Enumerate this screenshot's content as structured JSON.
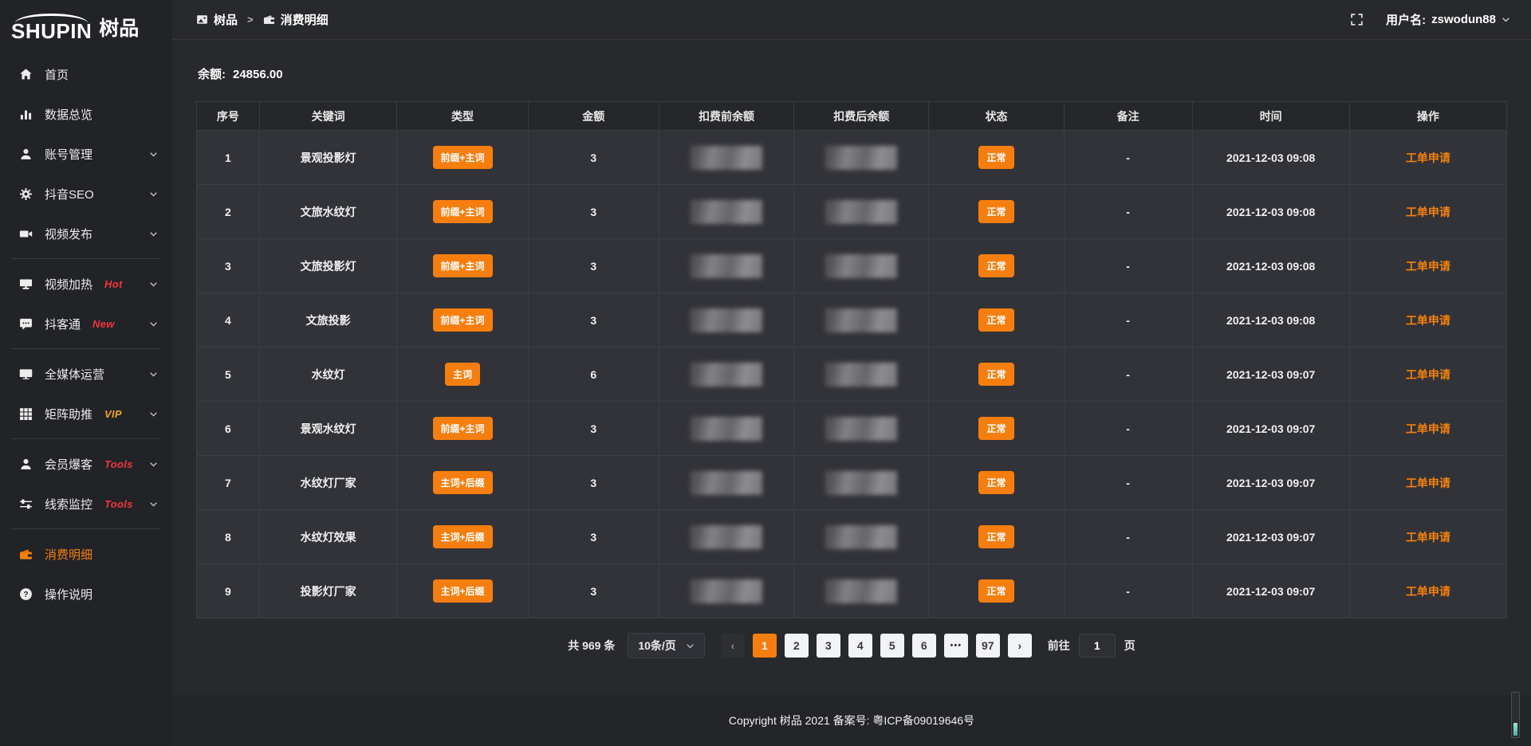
{
  "brand": {
    "logo_en": "SHUPIN",
    "logo_cn": "树品"
  },
  "topbar": {
    "breadcrumb": [
      {
        "label": "树品",
        "icon": "photo"
      },
      {
        "label": "消费明细",
        "icon": "wallet"
      }
    ],
    "breadcrumb_separator": ">",
    "username_label": "用户名:",
    "username": "zswodun88"
  },
  "sidebar": {
    "items": [
      {
        "label": "首页",
        "icon": "home"
      },
      {
        "label": "数据总览",
        "icon": "chart"
      },
      {
        "label": "账号管理",
        "icon": "user",
        "chevron": true
      },
      {
        "label": "抖音SEO",
        "icon": "gear",
        "chevron": true
      },
      {
        "label": "视频发布",
        "icon": "video",
        "chevron": true
      },
      {
        "label": "视频加热",
        "icon": "screen",
        "chevron": true,
        "badge": "Hot",
        "badge_style": "red",
        "divider_before": true
      },
      {
        "label": "抖客通",
        "icon": "chat",
        "chevron": true,
        "badge": "New",
        "badge_style": "red"
      },
      {
        "label": "全媒体运营",
        "icon": "monitor",
        "chevron": true,
        "divider_before": true
      },
      {
        "label": "矩阵助推",
        "icon": "grid",
        "chevron": true,
        "badge": "VIP",
        "badge_style": "gold"
      },
      {
        "label": "会员爆客",
        "icon": "member",
        "chevron": true,
        "badge": "Tools",
        "badge_style": "red",
        "divider_before": true
      },
      {
        "label": "线索监控",
        "icon": "sliders",
        "chevron": true,
        "badge": "Tools",
        "badge_style": "red"
      },
      {
        "label": "消费明细",
        "icon": "wallet",
        "active": true,
        "divider_before": true
      },
      {
        "label": "操作说明",
        "icon": "question"
      }
    ]
  },
  "main": {
    "balance_label": "余额:",
    "balance_value": "24856.00",
    "table": {
      "columns": [
        {
          "label": "序号",
          "key": "index",
          "kind": "text",
          "width": "4.8%"
        },
        {
          "label": "关键词",
          "key": "keyword",
          "kind": "text",
          "width": "10.5%"
        },
        {
          "label": "类型",
          "key": "type",
          "kind": "badge",
          "width": "10%"
        },
        {
          "label": "金额",
          "key": "amount",
          "kind": "text",
          "width": "10%"
        },
        {
          "label": "扣费前余额",
          "key": "balance_before",
          "kind": "masked",
          "width": "10.3%"
        },
        {
          "label": "扣费后余额",
          "key": "balance_after",
          "kind": "masked",
          "width": "10.3%"
        },
        {
          "label": "状态",
          "key": "status",
          "kind": "badge",
          "width": "10.3%"
        },
        {
          "label": "备注",
          "key": "remark",
          "kind": "text",
          "width": "9.8%"
        },
        {
          "label": "时间",
          "key": "time",
          "kind": "text",
          "width": "12%"
        },
        {
          "label": "操作",
          "key": "action",
          "kind": "link",
          "width": "12%"
        }
      ],
      "rows": [
        {
          "index": "1",
          "keyword": "景观投影灯",
          "type": "前缀+主词",
          "amount": "3",
          "status": "正常",
          "remark": "-",
          "time": "2021-12-03 09:08",
          "action": "工单申请"
        },
        {
          "index": "2",
          "keyword": "文旅水纹灯",
          "type": "前缀+主词",
          "amount": "3",
          "status": "正常",
          "remark": "-",
          "time": "2021-12-03 09:08",
          "action": "工单申请"
        },
        {
          "index": "3",
          "keyword": "文旅投影灯",
          "type": "前缀+主词",
          "amount": "3",
          "status": "正常",
          "remark": "-",
          "time": "2021-12-03 09:08",
          "action": "工单申请"
        },
        {
          "index": "4",
          "keyword": "文旅投影",
          "type": "前缀+主词",
          "amount": "3",
          "status": "正常",
          "remark": "-",
          "time": "2021-12-03 09:08",
          "action": "工单申请"
        },
        {
          "index": "5",
          "keyword": "水纹灯",
          "type": "主词",
          "amount": "6",
          "status": "正常",
          "remark": "-",
          "time": "2021-12-03 09:07",
          "action": "工单申请"
        },
        {
          "index": "6",
          "keyword": "景观水纹灯",
          "type": "前缀+主词",
          "amount": "3",
          "status": "正常",
          "remark": "-",
          "time": "2021-12-03 09:07",
          "action": "工单申请"
        },
        {
          "index": "7",
          "keyword": "水纹灯厂家",
          "type": "主词+后缀",
          "amount": "3",
          "status": "正常",
          "remark": "-",
          "time": "2021-12-03 09:07",
          "action": "工单申请"
        },
        {
          "index": "8",
          "keyword": "水纹灯效果",
          "type": "主词+后缀",
          "amount": "3",
          "status": "正常",
          "remark": "-",
          "time": "2021-12-03 09:07",
          "action": "工单申请"
        },
        {
          "index": "9",
          "keyword": "投影灯厂家",
          "type": "主词+后缀",
          "amount": "3",
          "status": "正常",
          "remark": "-",
          "time": "2021-12-03 09:07",
          "action": "工单申请"
        }
      ]
    },
    "pagination": {
      "total_label": "共 969 条",
      "page_size": "10条/页",
      "prev_label": "‹",
      "next_label": "›",
      "pages": [
        "1",
        "2",
        "3",
        "4",
        "5",
        "6",
        "•••",
        "97"
      ],
      "active_page": "1",
      "jump_prefix": "前往",
      "jump_value": "1",
      "jump_suffix": "页"
    }
  },
  "footer": {
    "copyright": "Copyright 树品 2021 备案号: 粤ICP备09019646号"
  },
  "colors": {
    "accent_orange": "#f57e0e",
    "hot_red": "#f2353f",
    "vip_gold": "#efa12d",
    "sidebar_bg": "#222327",
    "content_bg": "#28292c",
    "row_bg": "#323338"
  }
}
